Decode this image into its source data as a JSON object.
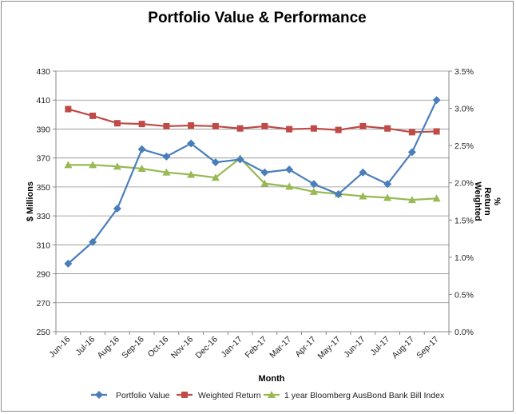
{
  "chart_data": {
    "type": "line",
    "title": "Portfolio Value & Performance",
    "xlabel": "Month",
    "ylabel": "$ Millions",
    "y2label_lines": [
      "Weighted",
      "Return",
      "%"
    ],
    "categories": [
      "Jun-16",
      "Jul-16",
      "Aug-16",
      "Sep-16",
      "Oct-16",
      "Nov-16",
      "Dec-16",
      "Jan-17",
      "Feb-17",
      "Mar-17",
      "Apr-17",
      "May-17",
      "Jun-17",
      "Jul-17",
      "Aug-17",
      "Sep-17"
    ],
    "ylim": [
      250,
      430
    ],
    "yticks": [
      250,
      270,
      290,
      310,
      330,
      350,
      370,
      390,
      410,
      430
    ],
    "y2lim": [
      0,
      3.5
    ],
    "y2ticks": [
      0,
      0.5,
      1.0,
      1.5,
      2.0,
      2.5,
      3.0,
      3.5
    ],
    "y2tick_labels": [
      "0.0%",
      "0.5%",
      "1.0%",
      "1.5%",
      "2.0%",
      "2.5%",
      "3.0%",
      "3.5%"
    ],
    "legend_position": "bottom",
    "grid": "horizontal",
    "series": [
      {
        "name": "Portfolio Value",
        "axis": "left",
        "color": "#4a7ebb",
        "marker": "diamond",
        "values": [
          297,
          312,
          335,
          376,
          371,
          380,
          367,
          369,
          360,
          362,
          352,
          345,
          360,
          352,
          374,
          410
        ]
      },
      {
        "name": "Weighted Return",
        "axis": "right",
        "color": "#be4b48",
        "marker": "square",
        "values": [
          2.99,
          2.9,
          2.8,
          2.79,
          2.76,
          2.77,
          2.76,
          2.73,
          2.76,
          2.72,
          2.73,
          2.71,
          2.76,
          2.73,
          2.68,
          2.69
        ]
      },
      {
        "name": "1 year Bloomberg AusBond Bank Bill Index",
        "axis": "right",
        "color": "#98b954",
        "marker": "triangle",
        "values": [
          2.24,
          2.24,
          2.22,
          2.19,
          2.14,
          2.11,
          2.07,
          2.33,
          1.99,
          1.95,
          1.88,
          1.85,
          1.82,
          1.8,
          1.77,
          1.79
        ]
      }
    ]
  }
}
